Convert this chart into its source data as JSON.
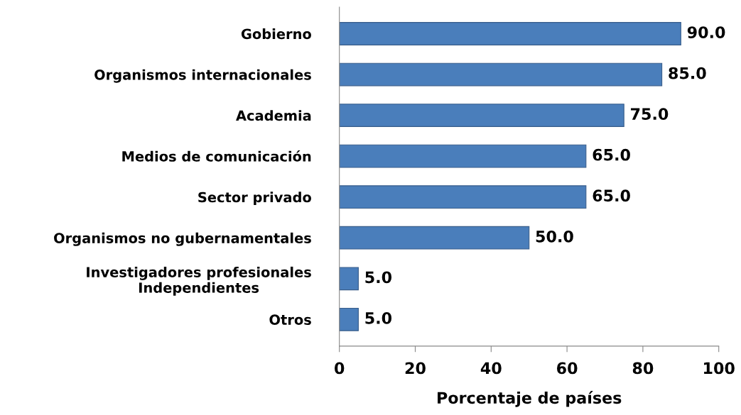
{
  "chart_data": {
    "type": "bar",
    "orientation": "horizontal",
    "xlabel": "Porcentaje de países",
    "categories": [
      "Gobierno",
      "Organismos internacionales",
      "Academia",
      "Medios de comunicación",
      "Sector privado",
      "Organismos no gubernamentales",
      "Investigadores profesionales\nIndependientes",
      "Otros"
    ],
    "values": [
      90.0,
      85.0,
      75.0,
      65.0,
      65.0,
      50.0,
      5.0,
      5.0
    ],
    "value_labels": [
      "90.0",
      "85.0",
      "75.0",
      "65.0",
      "65.0",
      "50.0",
      "5.0",
      "5.0"
    ],
    "color": "#4a7ebb",
    "xlim": [
      0,
      100
    ],
    "xticks": [
      0,
      20,
      40,
      60,
      80,
      100
    ],
    "grid": false,
    "legend": false
  }
}
